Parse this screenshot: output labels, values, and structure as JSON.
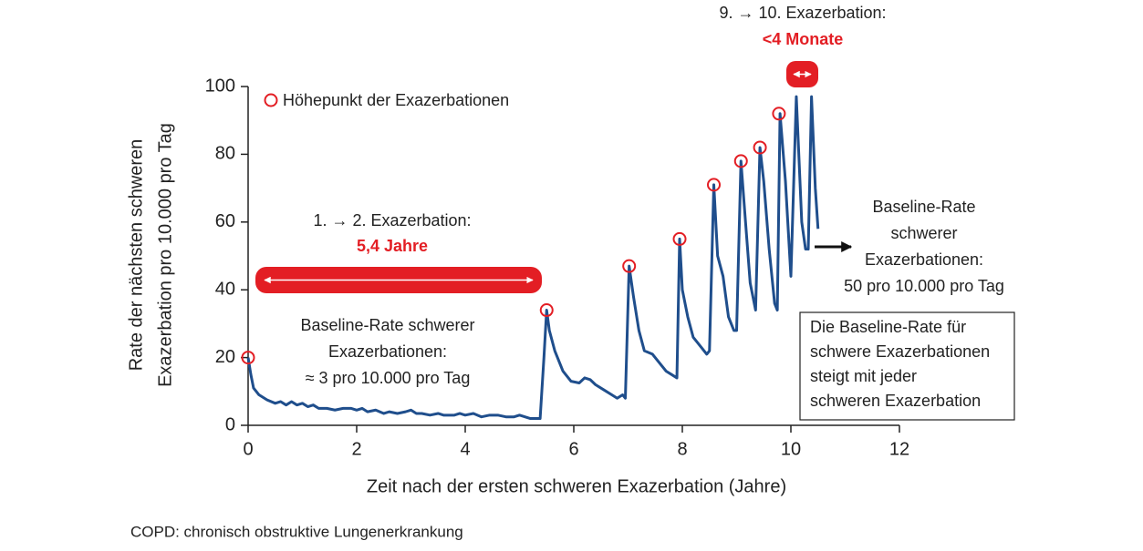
{
  "chart_data": {
    "type": "line",
    "y_label": [
      "Rate der nächsten schweren",
      "Exazerbation pro 10.000 pro Tag"
    ],
    "x_label": "Zeit nach der ersten schweren Exazerbation (Jahre)",
    "xlim": [
      0,
      12
    ],
    "xticks": [
      0,
      2,
      4,
      6,
      8,
      10,
      12
    ],
    "ylim": [
      0,
      100
    ],
    "yticks": [
      0,
      20,
      40,
      60,
      80,
      100
    ],
    "legend": "top-left",
    "x": [
      0,
      0.05,
      0.1,
      0.2,
      0.35,
      0.5,
      0.6,
      0.7,
      0.8,
      0.9,
      1.0,
      1.1,
      1.2,
      1.3,
      1.45,
      1.6,
      1.75,
      1.9,
      2.0,
      2.1,
      2.2,
      2.35,
      2.5,
      2.6,
      2.75,
      2.9,
      3.0,
      3.1,
      3.2,
      3.35,
      3.5,
      3.6,
      3.8,
      3.9,
      4.0,
      4.15,
      4.3,
      4.45,
      4.6,
      4.75,
      4.9,
      5.0,
      5.1,
      5.2,
      5.38,
      5.45,
      5.5,
      5.55,
      5.65,
      5.8,
      5.95,
      6.1,
      6.2,
      6.3,
      6.4,
      6.55,
      6.7,
      6.8,
      6.9,
      6.95,
      7.02,
      7.1,
      7.2,
      7.3,
      7.45,
      7.6,
      7.7,
      7.8,
      7.9,
      7.95,
      8.0,
      8.1,
      8.2,
      8.35,
      8.45,
      8.5,
      8.58,
      8.65,
      8.75,
      8.85,
      8.95,
      9.0,
      9.08,
      9.15,
      9.25,
      9.35,
      9.43,
      9.5,
      9.6,
      9.7,
      9.75,
      9.8,
      9.9,
      10.0,
      10.1,
      10.2,
      10.27,
      10.32,
      10.38,
      10.45,
      10.5
    ],
    "series": [
      {
        "color": "#1f4e8c",
        "values": [
          20,
          15,
          11,
          9,
          7.5,
          6.5,
          7,
          6,
          7,
          6,
          6.5,
          5.5,
          6,
          5,
          5,
          4.5,
          5,
          5,
          4.5,
          5,
          4,
          4.5,
          3.5,
          4,
          3.5,
          4,
          4.5,
          3.5,
          3.5,
          3,
          3.5,
          3,
          3,
          3.5,
          3,
          3.5,
          2.5,
          3,
          3,
          2.5,
          2.5,
          3,
          2.5,
          2,
          2,
          20,
          34,
          28,
          22,
          16,
          13,
          12.5,
          14,
          13.5,
          12,
          10.5,
          9,
          8,
          9,
          8,
          47,
          38,
          28,
          22,
          21,
          18,
          16,
          15,
          14,
          55,
          40,
          32,
          26,
          23,
          21,
          22,
          71,
          50,
          44,
          32,
          28,
          28,
          78,
          63,
          42,
          34,
          82,
          72,
          52,
          36,
          34,
          92,
          72,
          44,
          97,
          60,
          52,
          52,
          97,
          70,
          58
        ]
      },
      {
        "name": "Höhepunkt der Exazerbationen",
        "color": "#e31e24",
        "marker": "circle",
        "x": [
          0,
          5.5,
          7.02,
          7.95,
          8.58,
          9.08,
          9.43,
          9.78
        ],
        "values": [
          20,
          34,
          47,
          55,
          71,
          78,
          82,
          92
        ]
      }
    ],
    "annotations": [
      {
        "lines": [
          "1. → 2. Exazerbation:"
        ],
        "emphasis": "5,4 Jahre"
      },
      {
        "lines": [
          "Baseline-Rate schwerer",
          "Exazerbationen:",
          "≈ 3 pro 10.000 pro Tag"
        ]
      },
      {
        "lines": [
          "9. → 10. Exazerbation:"
        ],
        "emphasis": "<4 Monate"
      },
      {
        "lines": [
          "Baseline-Rate",
          "schwerer",
          "Exazerbationen:",
          "50 pro 10.000 pro Tag"
        ]
      },
      {
        "lines": [
          "Die Baseline-Rate für",
          "schwere Exazerbationen",
          "steigt mit jeder",
          "schweren Exazerbation"
        ]
      }
    ],
    "footnote": "COPD: chronisch obstruktive Lungenerkrankung"
  }
}
